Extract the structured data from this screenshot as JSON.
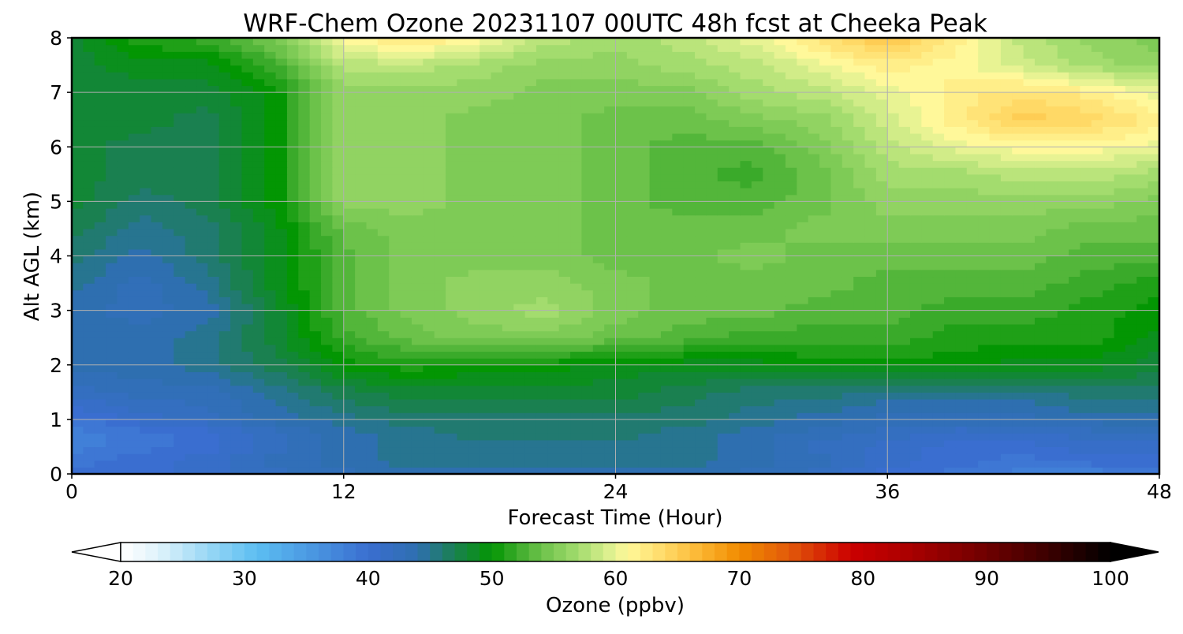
{
  "chart_data": {
    "type": "heatmap",
    "title": "WRF-Chem Ozone  20231107 00UTC 48h fcst at Cheeka Peak",
    "xlabel": "Forecast Time (Hour)",
    "ylabel": "Alt AGL (km)",
    "xlim": [
      0,
      48
    ],
    "ylim": [
      0,
      8
    ],
    "xticks": [
      0,
      12,
      24,
      36,
      48
    ],
    "yticks": [
      0,
      1,
      2,
      3,
      4,
      5,
      6,
      7,
      8
    ],
    "grid": true,
    "x": [
      0,
      3,
      6,
      9,
      12,
      15,
      18,
      21,
      24,
      27,
      30,
      33,
      36,
      39,
      42,
      45,
      48
    ],
    "y": [
      0,
      0.25,
      0.5,
      0.75,
      1,
      1.5,
      2,
      2.5,
      3,
      3.5,
      4,
      4.5,
      5,
      5.5,
      6,
      6.5,
      7,
      7.5,
      8
    ],
    "z": [
      [
        40,
        40,
        41,
        42,
        43,
        44,
        44,
        44,
        44,
        44,
        43,
        42,
        40,
        39,
        38,
        38,
        38
      ],
      [
        39,
        40,
        41,
        43,
        44,
        45,
        45,
        45,
        45,
        45,
        44,
        43,
        41,
        40,
        39,
        40,
        40
      ],
      [
        38,
        39,
        40,
        42,
        44,
        45,
        45,
        45,
        45,
        45,
        44,
        42,
        41,
        40,
        40,
        41,
        41
      ],
      [
        38,
        39,
        40,
        42,
        44,
        45,
        46,
        46,
        46,
        45,
        44,
        43,
        42,
        41,
        41,
        42,
        42
      ],
      [
        39,
        41,
        42,
        44,
        45,
        46,
        46,
        46,
        46,
        46,
        45,
        44,
        43,
        43,
        43,
        44,
        44
      ],
      [
        42,
        43,
        43,
        45,
        47,
        48,
        48,
        48,
        48,
        47,
        46,
        46,
        45,
        45,
        45,
        46,
        46
      ],
      [
        44,
        44,
        45,
        47,
        50,
        51,
        50,
        50,
        49,
        49,
        49,
        50,
        50,
        50,
        49,
        49,
        48
      ],
      [
        44,
        44,
        45,
        48,
        52,
        54,
        55,
        55,
        54,
        53,
        52,
        52,
        52,
        51,
        51,
        51,
        49
      ],
      [
        44,
        43,
        44,
        48,
        53,
        55,
        56,
        57,
        55,
        54,
        54,
        53,
        53,
        52,
        52,
        51,
        50
      ],
      [
        45,
        43,
        45,
        49,
        53,
        55,
        56,
        56,
        55,
        54,
        54,
        54,
        53,
        53,
        53,
        52,
        51
      ],
      [
        46,
        44,
        46,
        49,
        53,
        55,
        55,
        55,
        54,
        54,
        55,
        54,
        54,
        54,
        54,
        53,
        53
      ],
      [
        47,
        45,
        46,
        49,
        54,
        55,
        55,
        55,
        54,
        54,
        54,
        55,
        55,
        55,
        55,
        54,
        54
      ],
      [
        48,
        46,
        47,
        50,
        56,
        56,
        55,
        55,
        54,
        53,
        53,
        54,
        56,
        56,
        56,
        56,
        55
      ],
      [
        48,
        47,
        47,
        50,
        56,
        56,
        55,
        55,
        54,
        53,
        52,
        54,
        57,
        57,
        58,
        58,
        57
      ],
      [
        48,
        47,
        47,
        50,
        56,
        56,
        55,
        55,
        54,
        53,
        53,
        55,
        58,
        60,
        61,
        61,
        60
      ],
      [
        48,
        48,
        47,
        50,
        56,
        56,
        55,
        55,
        54,
        54,
        55,
        56,
        59,
        62,
        65,
        64,
        62
      ],
      [
        48,
        48,
        48,
        50,
        56,
        56,
        56,
        55,
        55,
        55,
        57,
        58,
        60,
        62,
        63,
        62,
        60
      ],
      [
        48,
        49,
        49,
        52,
        58,
        58,
        57,
        56,
        56,
        57,
        58,
        60,
        62,
        61,
        59,
        57,
        56
      ],
      [
        48,
        51,
        52,
        55,
        61,
        63,
        61,
        58,
        57,
        58,
        60,
        63,
        66,
        62,
        58,
        56,
        55
      ]
    ],
    "colorbar": {
      "label": "Ozone  (ppbv)",
      "min": 20,
      "max": 100,
      "ticks": [
        20,
        30,
        40,
        50,
        60,
        70,
        80,
        90,
        100
      ],
      "extend": "both",
      "stops": [
        [
          20,
          "#ffffff"
        ],
        [
          23,
          "#e0f3fb"
        ],
        [
          27,
          "#9ad8f5"
        ],
        [
          31,
          "#5cbef2"
        ],
        [
          35,
          "#4c9be3"
        ],
        [
          40,
          "#3a6ed0"
        ],
        [
          44,
          "#2e6fb0"
        ],
        [
          47,
          "#1a8050"
        ],
        [
          50,
          "#039603"
        ],
        [
          52,
          "#3aaa2a"
        ],
        [
          54,
          "#6cc24a"
        ],
        [
          57,
          "#a3dc6e"
        ],
        [
          59.5,
          "#ddf08f"
        ],
        [
          61,
          "#fff89a"
        ],
        [
          64,
          "#ffd966"
        ],
        [
          67,
          "#fbb42f"
        ],
        [
          70,
          "#f18b00"
        ],
        [
          74,
          "#e25a0a"
        ],
        [
          79,
          "#cc0000"
        ],
        [
          84,
          "#a80000"
        ],
        [
          90,
          "#6e0000"
        ],
        [
          95,
          "#3b0000"
        ],
        [
          100,
          "#000000"
        ]
      ]
    }
  }
}
